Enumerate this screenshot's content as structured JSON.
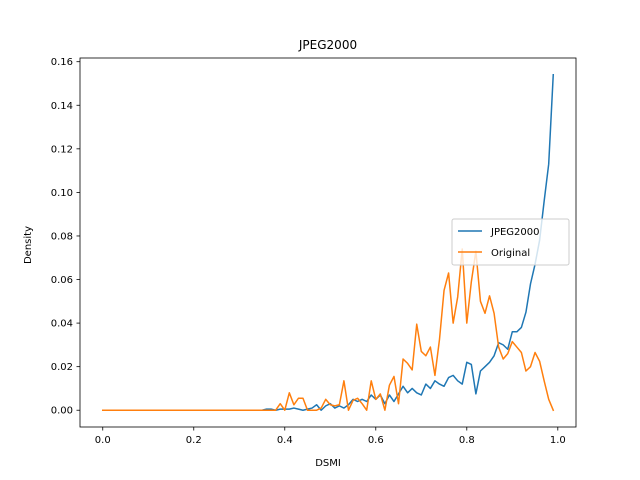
{
  "chart_data": {
    "type": "line",
    "title": "JPEG2000",
    "xlabel": "DSMI",
    "ylabel": "Density",
    "xlim": [
      -0.05,
      1.04
    ],
    "ylim": [
      -0.0077,
      0.1617
    ],
    "xticks": [
      0.0,
      0.2,
      0.4,
      0.6,
      0.8,
      1.0
    ],
    "xtick_labels": [
      "0.0",
      "0.2",
      "0.4",
      "0.6",
      "0.8",
      "1.0"
    ],
    "yticks": [
      0.0,
      0.02,
      0.04,
      0.06,
      0.08,
      0.1,
      0.12,
      0.14,
      0.16
    ],
    "ytick_labels": [
      "0.00",
      "0.02",
      "0.04",
      "0.06",
      "0.08",
      "0.10",
      "0.12",
      "0.14",
      "0.16"
    ],
    "grid": false,
    "legend_position": "center-right",
    "x": [
      0.0,
      0.01,
      0.02,
      0.03,
      0.04,
      0.05,
      0.06,
      0.07,
      0.08,
      0.09,
      0.1,
      0.11,
      0.12,
      0.13,
      0.14,
      0.15,
      0.16,
      0.17,
      0.18,
      0.19,
      0.2,
      0.21,
      0.22,
      0.23,
      0.24,
      0.25,
      0.26,
      0.27,
      0.28,
      0.29,
      0.3,
      0.31,
      0.32,
      0.33,
      0.34,
      0.35,
      0.36,
      0.37,
      0.38,
      0.39,
      0.4,
      0.41,
      0.42,
      0.43,
      0.44,
      0.45,
      0.46,
      0.47,
      0.48,
      0.49,
      0.5,
      0.51,
      0.52,
      0.53,
      0.54,
      0.55,
      0.56,
      0.57,
      0.58,
      0.59,
      0.6,
      0.61,
      0.62,
      0.63,
      0.64,
      0.65,
      0.66,
      0.67,
      0.68,
      0.69,
      0.7,
      0.71,
      0.72,
      0.73,
      0.74,
      0.75,
      0.76,
      0.77,
      0.78,
      0.79,
      0.8,
      0.81,
      0.82,
      0.83,
      0.84,
      0.85,
      0.86,
      0.87,
      0.88,
      0.89,
      0.9,
      0.91,
      0.92,
      0.93,
      0.94,
      0.95,
      0.96,
      0.97,
      0.98,
      0.99
    ],
    "series": [
      {
        "name": "JPEG2000",
        "color": "#1f77b4",
        "values": [
          0.0,
          0.0,
          0.0,
          0.0,
          0.0,
          0.0,
          0.0,
          0.0,
          0.0,
          0.0,
          0.0,
          0.0,
          0.0,
          0.0,
          0.0,
          0.0,
          0.0,
          0.0,
          0.0,
          0.0,
          0.0,
          0.0,
          0.0,
          0.0,
          0.0,
          0.0,
          0.0,
          0.0,
          0.0,
          0.0,
          0.0,
          0.0,
          0.0,
          0.0,
          0.0,
          0.0,
          0.0005,
          0.0005,
          0.0,
          0.0005,
          0.0005,
          0.0005,
          0.001,
          0.0005,
          0.0,
          0.0005,
          0.001,
          0.0025,
          0.0,
          0.002,
          0.003,
          0.001,
          0.002,
          0.001,
          0.0025,
          0.005,
          0.004,
          0.005,
          0.004,
          0.007,
          0.005,
          0.007,
          0.003,
          0.007,
          0.004,
          0.0075,
          0.011,
          0.008,
          0.01,
          0.008,
          0.007,
          0.012,
          0.01,
          0.0135,
          0.012,
          0.011,
          0.015,
          0.016,
          0.0135,
          0.012,
          0.022,
          0.021,
          0.0075,
          0.018,
          0.02,
          0.022,
          0.025,
          0.031,
          0.03,
          0.028,
          0.036,
          0.036,
          0.038,
          0.045,
          0.058,
          0.067,
          0.078,
          0.096,
          0.113,
          0.154
        ]
      },
      {
        "name": "Original",
        "color": "#ff7f0e",
        "values": [
          0.0,
          0.0,
          0.0,
          0.0,
          0.0,
          0.0,
          0.0,
          0.0,
          0.0,
          0.0,
          0.0,
          0.0,
          0.0,
          0.0,
          0.0,
          0.0,
          0.0,
          0.0,
          0.0,
          0.0,
          0.0,
          0.0,
          0.0,
          0.0,
          0.0,
          0.0,
          0.0,
          0.0,
          0.0,
          0.0,
          0.0,
          0.0,
          0.0,
          0.0,
          0.0,
          0.0,
          0.0,
          0.0,
          0.0,
          0.003,
          0.0,
          0.008,
          0.0025,
          0.0055,
          0.0055,
          0.0,
          0.0,
          0.0,
          0.001,
          0.005,
          0.0025,
          0.002,
          0.0025,
          0.0135,
          0.0,
          0.0045,
          0.0055,
          0.003,
          0.0,
          0.0135,
          0.005,
          0.0075,
          0.0,
          0.0115,
          0.0155,
          0.003,
          0.0235,
          0.0215,
          0.0185,
          0.0395,
          0.027,
          0.025,
          0.029,
          0.016,
          0.0325,
          0.055,
          0.063,
          0.04,
          0.052,
          0.074,
          0.04,
          0.059,
          0.073,
          0.05,
          0.0445,
          0.0525,
          0.0445,
          0.029,
          0.0235,
          0.026,
          0.0315,
          0.029,
          0.0265,
          0.018,
          0.02,
          0.0265,
          0.0225,
          0.0135,
          0.005,
          0.0
        ]
      }
    ]
  }
}
